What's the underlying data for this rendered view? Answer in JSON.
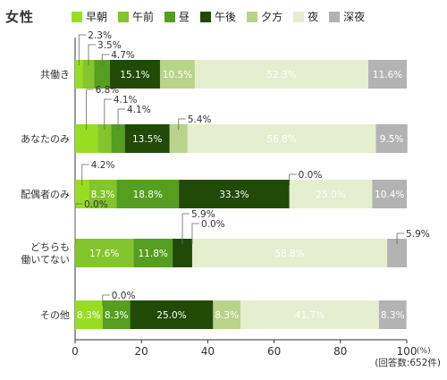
{
  "title": "女性",
  "colors": {
    "早朝": "#99dd22",
    "午前": "#84c42c",
    "昼": "#559e1f",
    "午後": "#214a07",
    "夕方": "#bad38a",
    "夜": "#e5eecf",
    "深夜": "#b3b3b3"
  },
  "chart_data": {
    "type": "bar",
    "orientation": "horizontal",
    "stacked": "percent",
    "categories": [
      "共働き",
      "あなたのみ",
      "配偶者のみ",
      "どちらも\n働いてない",
      "その他"
    ],
    "series": [
      {
        "name": "早朝",
        "values": [
          2.3,
          6.8,
          4.2,
          0.0,
          8.3
        ]
      },
      {
        "name": "午前",
        "values": [
          3.5,
          4.1,
          8.3,
          17.6,
          0.0
        ]
      },
      {
        "name": "昼",
        "values": [
          4.7,
          4.1,
          18.8,
          11.8,
          8.3
        ]
      },
      {
        "name": "午後",
        "values": [
          15.1,
          13.5,
          33.3,
          5.9,
          25.0
        ]
      },
      {
        "name": "夕方",
        "values": [
          10.5,
          5.4,
          0.0,
          0.0,
          8.3
        ]
      },
      {
        "name": "夜",
        "values": [
          52.3,
          56.8,
          25.0,
          58.8,
          41.7
        ]
      },
      {
        "name": "深夜",
        "values": [
          11.6,
          9.5,
          10.4,
          5.9,
          8.3
        ]
      }
    ],
    "xlim": [
      0,
      100
    ],
    "xticks": [
      0,
      20,
      40,
      60,
      80,
      100
    ],
    "x_unit": "(%)",
    "note": "(回答数:652件)",
    "legend_position": "top",
    "grid": false
  }
}
